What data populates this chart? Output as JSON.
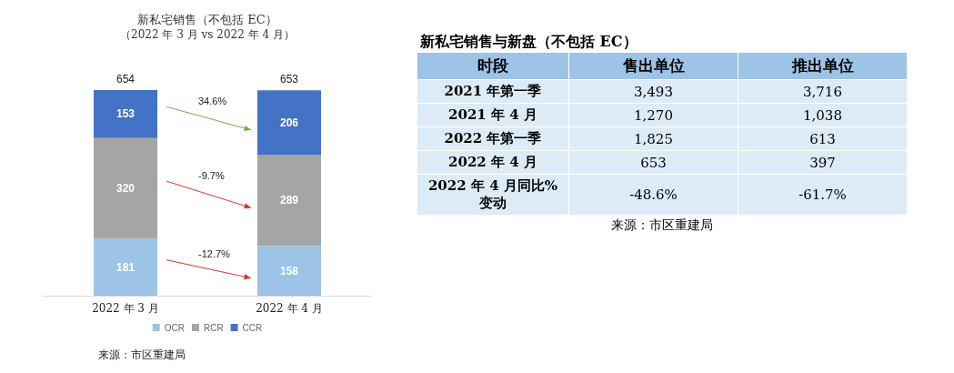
{
  "chart_data": [
    {
      "type": "bar",
      "title": "新私宅销售（不包括 EC）",
      "subtitle": "（2022 年 3 月 vs 2022 年 4 月）",
      "categories": [
        "2022 年 3 月",
        "2022 年 4 月"
      ],
      "stacked": true,
      "data_labels": true,
      "totals": [
        "654",
        "653"
      ],
      "legend": "bottom",
      "grid": false,
      "tick_labels": "x",
      "series": [
        {
          "name": "OCR",
          "color": "#9dc3e6",
          "values": [
            181,
            158
          ]
        },
        {
          "name": "RCR",
          "color": "#a5a5a5",
          "values": [
            320,
            289
          ]
        },
        {
          "name": "CCR",
          "color": "#4472c4",
          "values": [
            153,
            206
          ]
        }
      ],
      "annotations": [
        "-12.7%",
        "-9.7%",
        "34.6%",
        "来源：市区重建局"
      ]
    },
    {
      "type": "other",
      "title": "新私宅销售与新盘（不包括 EC）",
      "ylabel": "时段",
      "categories": [
        "2021 年第一季",
        "2021 年 4 月",
        "2022 年第一季",
        "2022 年 4 月",
        "2022 年 4 月同比%变动"
      ],
      "series": [
        {
          "name": "售出单位",
          "values": [
            3493,
            1270,
            1825,
            653,
            -48.6
          ],
          "value_labels": [
            "3,493",
            "1,270",
            "1,825",
            "653",
            "-48.6%"
          ]
        },
        {
          "name": "推出单位",
          "values": [
            3716,
            1038,
            613,
            397,
            -61.7
          ],
          "value_labels": [
            "3,716",
            "1,038",
            "613",
            "397",
            "-61.7%"
          ]
        }
      ],
      "annotations": [
        "来源：市区重建局"
      ]
    }
  ]
}
